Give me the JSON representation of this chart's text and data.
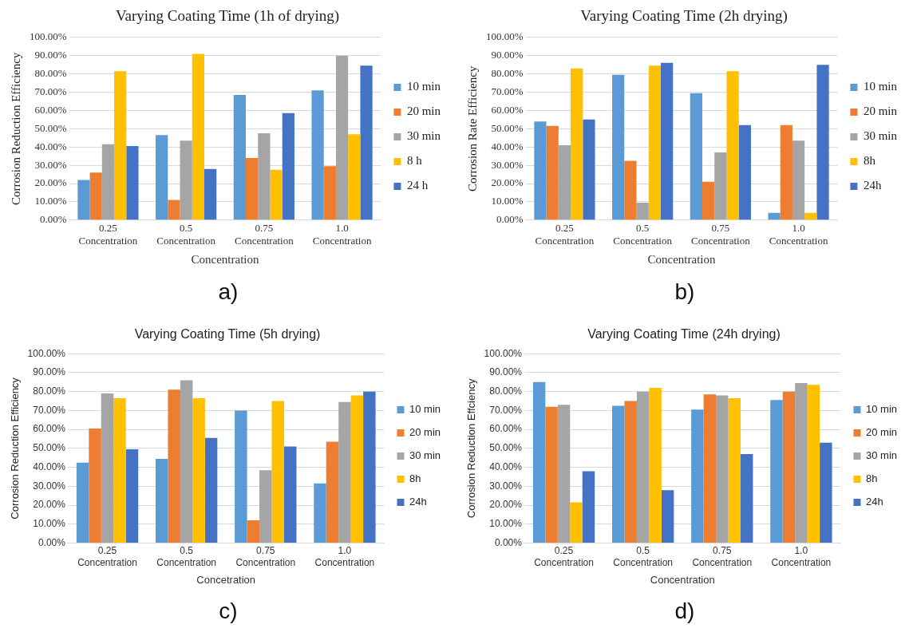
{
  "chart_data": [
    {
      "type": "bar",
      "title": "Varying Coating Time (1h of drying)",
      "xlabel": "Concentration",
      "ylabel": "Corrosion Reduction Efficiency",
      "annotations": [
        "a)"
      ],
      "categories": [
        "0.25 Concentration",
        "0.5 Concentration",
        "0.75 Concentration",
        "1.0 Concentration"
      ],
      "series": [
        {
          "name": "10 min",
          "color": "#5b9bd5",
          "values": [
            22,
            46.5,
            68.5,
            71
          ]
        },
        {
          "name": "20 min",
          "color": "#ed7d31",
          "values": [
            26,
            11,
            34,
            29.5
          ]
        },
        {
          "name": "30 min",
          "color": "#a5a5a5",
          "values": [
            41.5,
            43.5,
            47.5,
            90
          ]
        },
        {
          "name": "8 h",
          "color": "#ffc000",
          "values": [
            81.5,
            91,
            27.5,
            47
          ]
        },
        {
          "name": "24 h",
          "color": "#4472c4",
          "values": [
            40.5,
            28,
            58.5,
            84.5
          ]
        }
      ],
      "ylim": [
        0,
        100
      ],
      "yticks": [
        {
          "value": 0,
          "label": "0.00%"
        },
        {
          "value": 10,
          "label": "10.00%"
        },
        {
          "value": 20,
          "label": "20.00%"
        },
        {
          "value": 30,
          "label": "30.00%"
        },
        {
          "value": 40,
          "label": "40.00%"
        },
        {
          "value": 50,
          "label": "50.00%"
        },
        {
          "value": 60,
          "label": "60.00%"
        },
        {
          "value": 70,
          "label": "70.00%"
        },
        {
          "value": 80,
          "label": "80.00%"
        },
        {
          "value": 90,
          "label": "90.00%"
        },
        {
          "value": 100,
          "label": "100.00%"
        }
      ],
      "grid": "y",
      "legend": "right"
    },
    {
      "type": "bar",
      "title": "Varying Coating Time (2h drying)",
      "xlabel": "Concentration",
      "ylabel": "Corrosion Rate Efficiency",
      "annotations": [
        "b)"
      ],
      "categories": [
        "0.25 Concentration",
        "0.5 Concentration",
        "0.75 Concentration",
        "1.0 Concentration"
      ],
      "series": [
        {
          "name": "10 min",
          "color": "#5b9bd5",
          "values": [
            54,
            79.5,
            69.5,
            4
          ]
        },
        {
          "name": "20 min",
          "color": "#ed7d31",
          "values": [
            51.5,
            32.5,
            21,
            52
          ]
        },
        {
          "name": "30 min",
          "color": "#a5a5a5",
          "values": [
            41,
            9.5,
            37,
            43.5
          ]
        },
        {
          "name": "8h",
          "color": "#ffc000",
          "values": [
            83,
            84.5,
            81.5,
            4
          ]
        },
        {
          "name": "24h",
          "color": "#4472c4",
          "values": [
            55,
            86,
            52,
            85
          ]
        }
      ],
      "ylim": [
        0,
        100
      ],
      "yticks": [
        {
          "value": 0,
          "label": "0.00%"
        },
        {
          "value": 10,
          "label": "10.00%"
        },
        {
          "value": 20,
          "label": "20.00%"
        },
        {
          "value": 30,
          "label": "30.00%"
        },
        {
          "value": 40,
          "label": "40.00%"
        },
        {
          "value": 50,
          "label": "50.00%"
        },
        {
          "value": 60,
          "label": "60.00%"
        },
        {
          "value": 70,
          "label": "70.00%"
        },
        {
          "value": 80,
          "label": "80.00%"
        },
        {
          "value": 90,
          "label": "90.00%"
        },
        {
          "value": 100,
          "label": "100.00%"
        }
      ],
      "grid": "y",
      "legend": "right"
    },
    {
      "type": "bar",
      "title": "Varying Coating Time (5h drying)",
      "xlabel": "Concetration",
      "ylabel": "Corrosion Reduction Efficiency",
      "annotations": [
        "c)"
      ],
      "categories": [
        "0.25 Concentration",
        "0.5 Concentration",
        "0.75 Concentration",
        "1.0 Concentration"
      ],
      "series": [
        {
          "name": "10 min",
          "color": "#5b9bd5",
          "values": [
            42.5,
            44.5,
            70,
            31.5
          ]
        },
        {
          "name": "20 min",
          "color": "#ed7d31",
          "values": [
            60.5,
            81,
            12,
            53.5
          ]
        },
        {
          "name": "30 min",
          "color": "#a5a5a5",
          "values": [
            79,
            86,
            38.5,
            74.5
          ]
        },
        {
          "name": "8h",
          "color": "#ffc000",
          "values": [
            76.5,
            76.5,
            75,
            78
          ]
        },
        {
          "name": "24h",
          "color": "#4472c4",
          "values": [
            49.5,
            55.5,
            51,
            80
          ]
        }
      ],
      "ylim": [
        0,
        100
      ],
      "yticks": [
        {
          "value": 0,
          "label": "0.00%"
        },
        {
          "value": 10,
          "label": "10.00%"
        },
        {
          "value": 20,
          "label": "20.00%"
        },
        {
          "value": 30,
          "label": "30.00%"
        },
        {
          "value": 40,
          "label": "40.00%"
        },
        {
          "value": 50,
          "label": "50.00%"
        },
        {
          "value": 60,
          "label": "60.00%"
        },
        {
          "value": 70,
          "label": "70.00%"
        },
        {
          "value": 80,
          "label": "80.00%"
        },
        {
          "value": 90,
          "label": "90.00%"
        },
        {
          "value": 100,
          "label": "100.00%"
        }
      ],
      "grid": "y",
      "legend": "right"
    },
    {
      "type": "bar",
      "title": "Varying Coating Time (24h drying)",
      "xlabel": "Concentration",
      "ylabel": "Corrosion Reduction Effciency",
      "annotations": [
        "d)"
      ],
      "categories": [
        "0.25 Concentration",
        "0.5 Concentration",
        "0.75 Concentration",
        "1.0 Concentration"
      ],
      "series": [
        {
          "name": "10 min",
          "color": "#5b9bd5",
          "values": [
            85,
            72.5,
            70.5,
            75.5
          ]
        },
        {
          "name": "20 min",
          "color": "#ed7d31",
          "values": [
            72,
            75,
            78.5,
            80
          ]
        },
        {
          "name": "30 min",
          "color": "#a5a5a5",
          "values": [
            73,
            80,
            78,
            84.5
          ]
        },
        {
          "name": "8h",
          "color": "#ffc000",
          "values": [
            21.5,
            82,
            76.5,
            83.5
          ]
        },
        {
          "name": "24h",
          "color": "#4472c4",
          "values": [
            38,
            28,
            47,
            53
          ]
        }
      ],
      "ylim": [
        0,
        100
      ],
      "yticks": [
        {
          "value": 0,
          "label": "0.00%"
        },
        {
          "value": 10,
          "label": "10.00%"
        },
        {
          "value": 20,
          "label": "20.00%"
        },
        {
          "value": 30,
          "label": "30.00%"
        },
        {
          "value": 40,
          "label": "40.00%"
        },
        {
          "value": 50,
          "label": "50.00%"
        },
        {
          "value": 60,
          "label": "60.00%"
        },
        {
          "value": 70,
          "label": "70.00%"
        },
        {
          "value": 80,
          "label": "80.00%"
        },
        {
          "value": 90,
          "label": "90.00%"
        },
        {
          "value": 100,
          "label": "100.00%"
        }
      ],
      "grid": "y",
      "legend": "right"
    }
  ]
}
